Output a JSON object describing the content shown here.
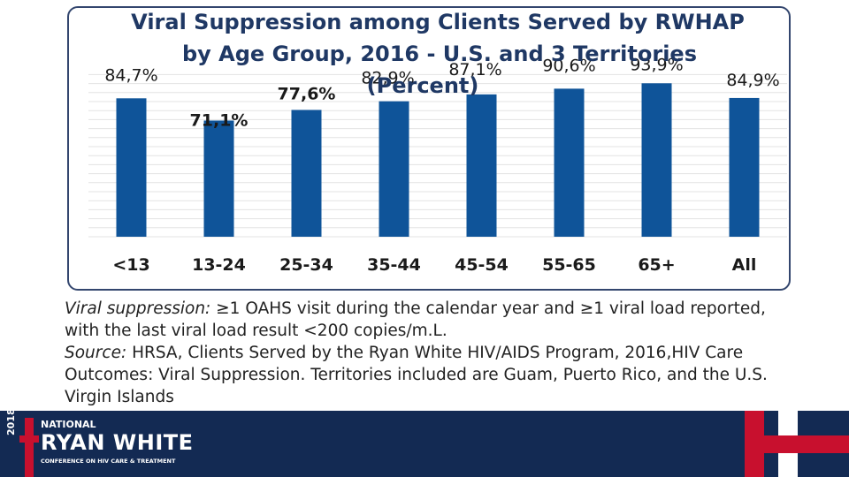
{
  "chart_data": {
    "type": "bar",
    "title": "Viral Suppression among Clients Served by RWHAP",
    "subtitle": "by Age Group, 2016 - U.S. and 3 Territories",
    "unit_label": "(Percent)",
    "categories": [
      "<13",
      "13-24",
      "25-34",
      "35-44",
      "45-54",
      "55-65",
      "65+",
      "All"
    ],
    "values": [
      84.7,
      71.1,
      77.6,
      82.9,
      87.1,
      90.6,
      93.9,
      84.9
    ],
    "value_labels": [
      "84,7%",
      "71,1%",
      "77,6%",
      "82,9%",
      "87,1%",
      "90,6%",
      "93,9%",
      "84,9%"
    ],
    "ylim": [
      0,
      100
    ],
    "xlabel": "",
    "ylabel": "",
    "grid": true,
    "bar_color": "#0f5499"
  },
  "footnote": {
    "definition_label": "Viral suppression:",
    "definition_text": " ≥1 OAHS visit during the calendar year and ≥1 viral load reported, with the last viral load result <200 copies/m.L.",
    "source_label": "Source:",
    "source_text": " HRSA, Clients Served by the Ryan White HIV/AIDS Program, 2016,HIV Care Outcomes: Viral Suppression. Territories included are Guam, Puerto Rico, and the U.S. Virgin Islands"
  },
  "footer": {
    "year": "2018",
    "national": "NATIONAL",
    "name": "RYAN WHITE",
    "tagline": "CONFERENCE ON HIV CARE & TREATMENT",
    "background_color": "#132a53",
    "accent_color": "#c8102e"
  }
}
